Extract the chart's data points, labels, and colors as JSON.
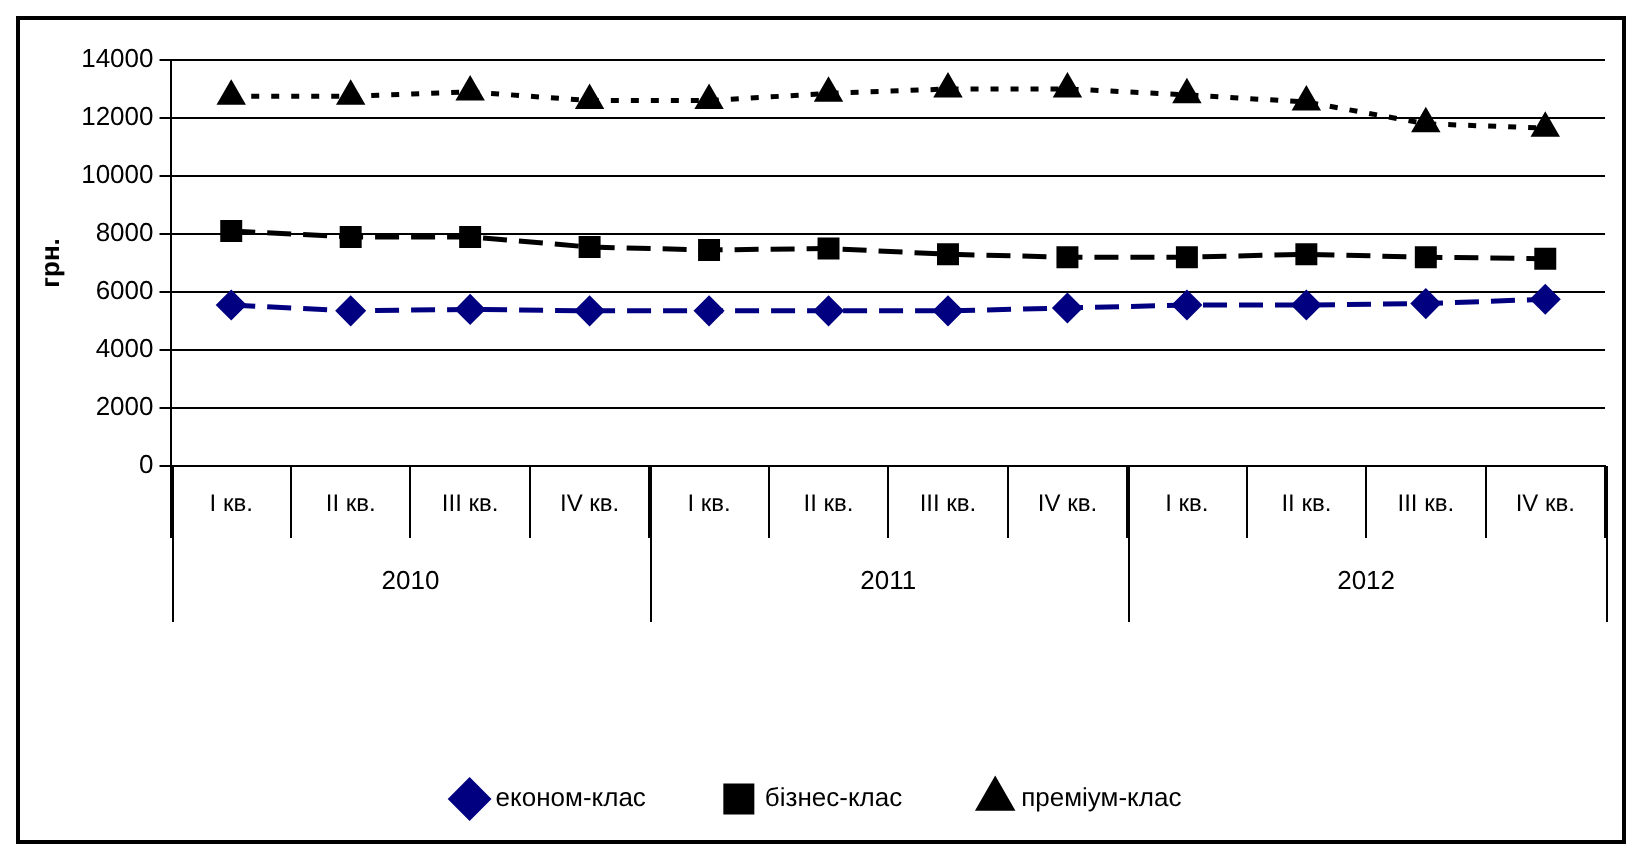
{
  "chart_data": {
    "type": "line",
    "ylabel": "грн.",
    "categories": [
      "I кв.",
      "II кв.",
      "III кв.",
      "IV кв.",
      "I кв.",
      "II кв.",
      "III кв.",
      "IV кв.",
      "I кв.",
      "II кв.",
      "III кв.",
      "IV кв."
    ],
    "annotations": [
      "2010",
      "2011",
      "2012"
    ],
    "ylim": [
      0,
      14000
    ],
    "yticks": [
      0,
      2000,
      4000,
      6000,
      8000,
      10000,
      12000,
      14000
    ],
    "grid": "y",
    "legend": "bottom",
    "series": [
      {
        "name": "економ-клас",
        "color": "#000080",
        "marker": "diamond",
        "line_style": "dashed",
        "values": [
          5550,
          5350,
          5400,
          5350,
          5350,
          5350,
          5350,
          5450,
          5550,
          5550,
          5600,
          5750
        ]
      },
      {
        "name": "бізнес-клас",
        "color": "#000000",
        "marker": "square",
        "line_style": "dashed",
        "values": [
          8100,
          7900,
          7900,
          7550,
          7450,
          7500,
          7300,
          7200,
          7200,
          7300,
          7200,
          7150
        ]
      },
      {
        "name": "преміум-клас",
        "color": "#000000",
        "marker": "triangle",
        "line_style": "dotted",
        "values": [
          12750,
          12750,
          12900,
          12600,
          12600,
          12850,
          13000,
          13000,
          12800,
          12550,
          11800,
          11650
        ]
      }
    ]
  }
}
